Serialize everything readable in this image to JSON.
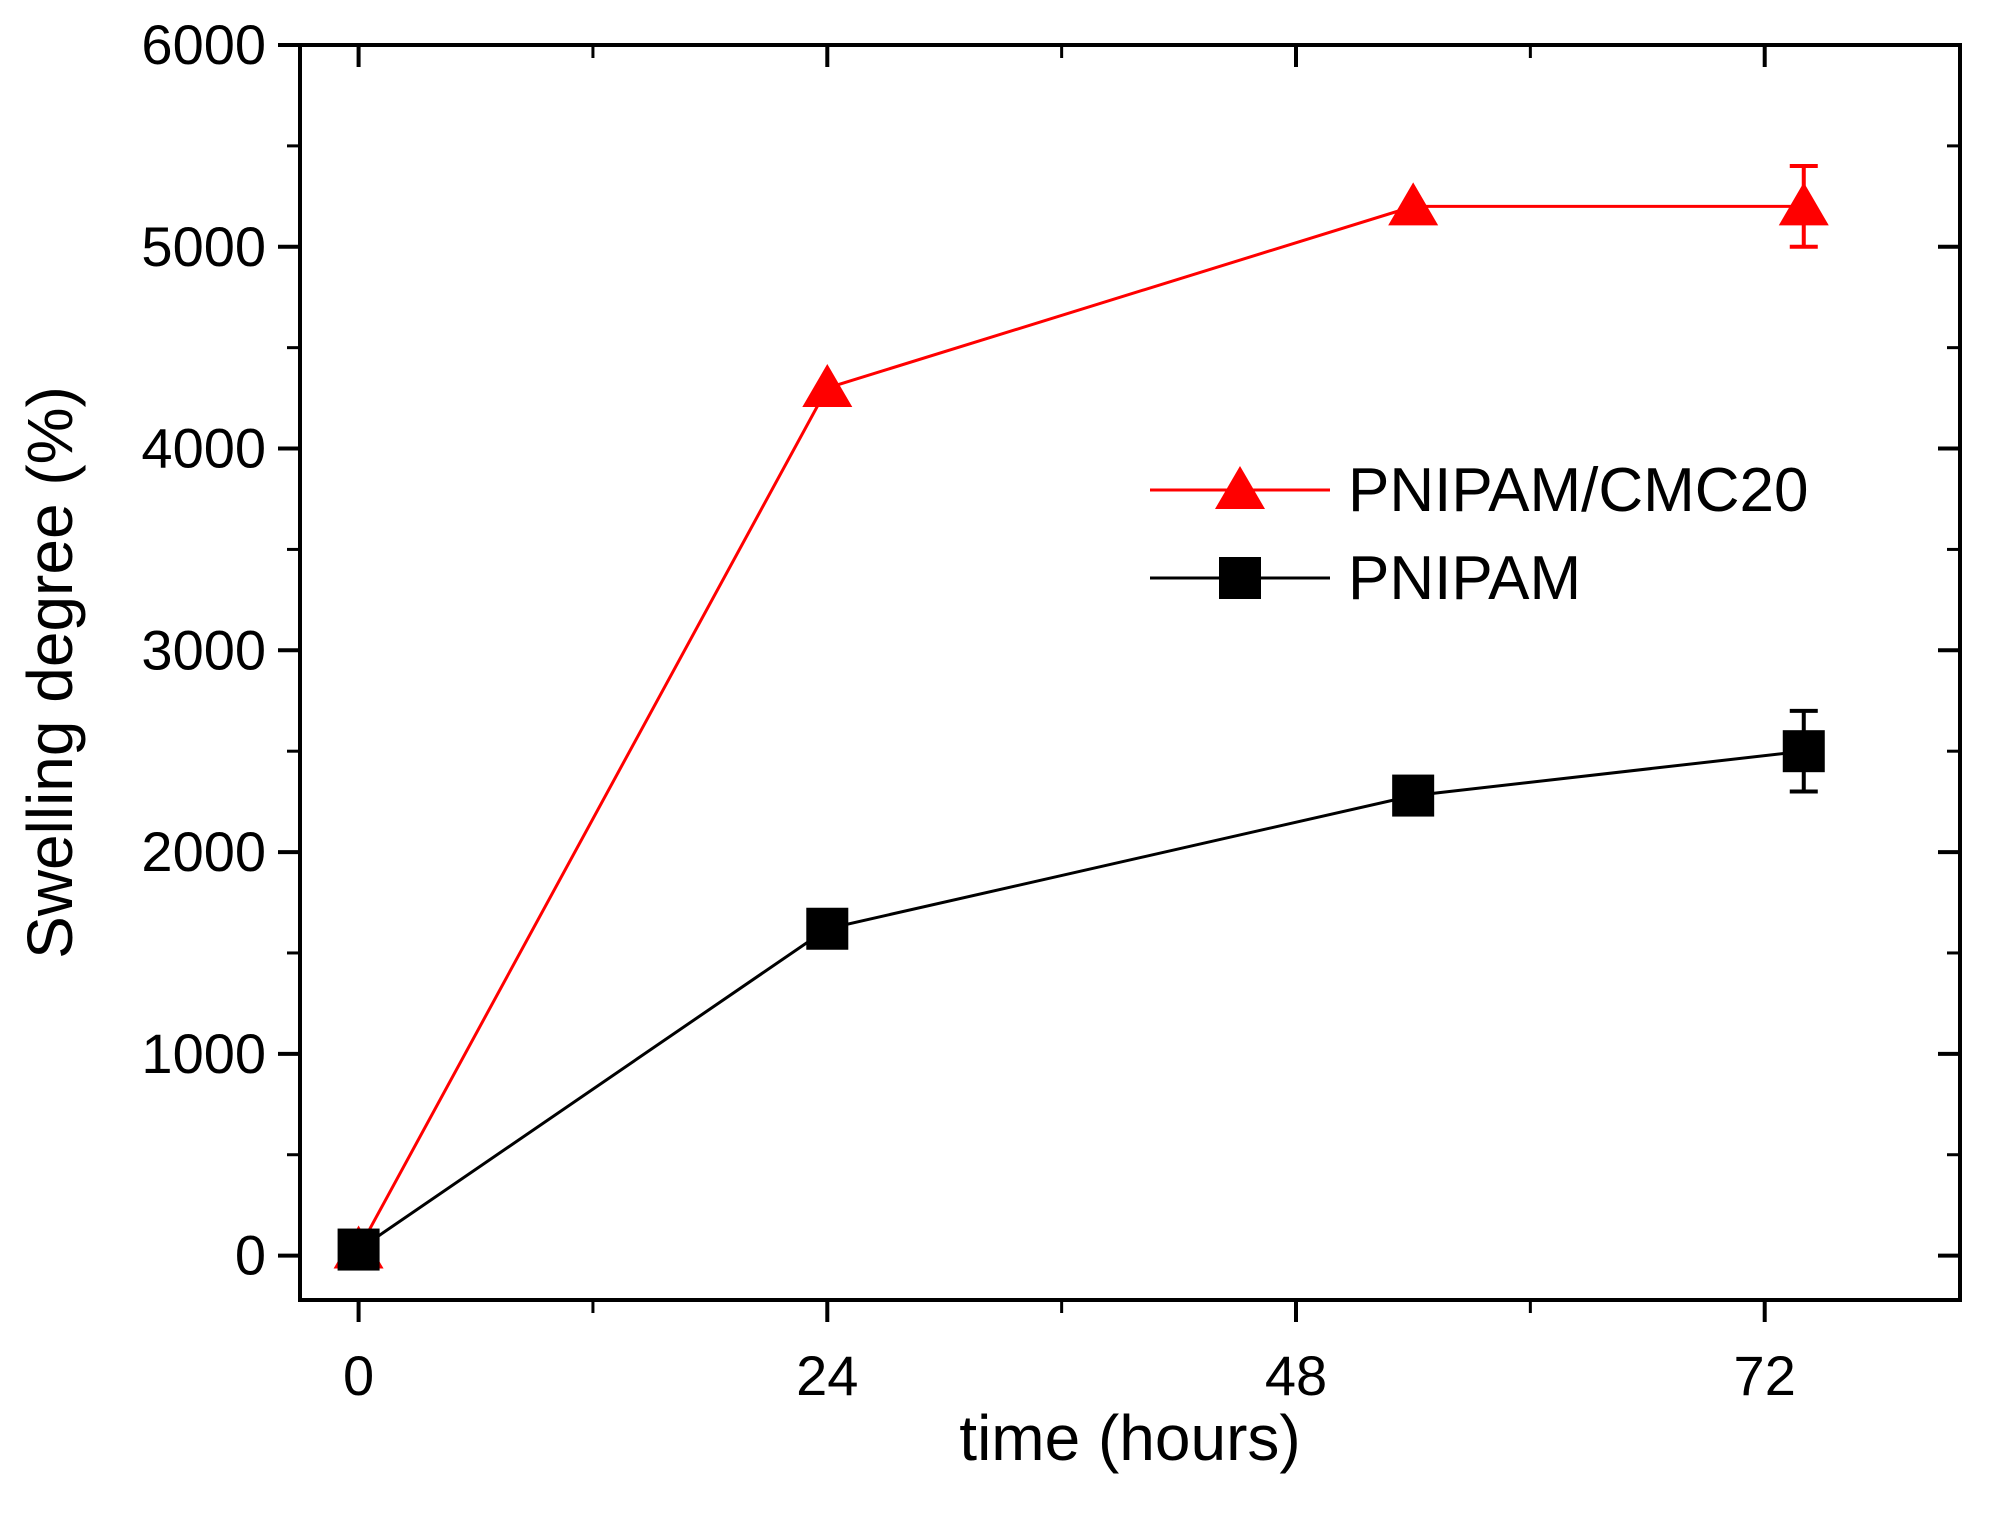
{
  "chart_data": {
    "type": "line",
    "title": "",
    "xlabel": "time (hours)",
    "ylabel": "Swelling degree (%)",
    "xlim": [
      -3,
      82
    ],
    "ylim": [
      -220,
      6000
    ],
    "x_major_ticks": [
      0,
      24,
      48,
      72
    ],
    "x_minor_step": 12,
    "y_major_ticks": [
      0,
      1000,
      2000,
      3000,
      4000,
      5000,
      6000
    ],
    "y_minor_step": 500,
    "grid": false,
    "legend_position": "upper-middle-right",
    "frame_color": "#000000",
    "background_color": "#ffffff",
    "series": [
      {
        "name": "PNIPAM/CMC20",
        "color": "#ff0000",
        "marker": "triangle",
        "x": [
          0,
          24,
          54,
          74
        ],
        "y": [
          30,
          4300,
          5200,
          5200
        ],
        "yerr": [
          40,
          0,
          0,
          200
        ]
      },
      {
        "name": "PNIPAM",
        "color": "#000000",
        "marker": "square",
        "x": [
          0,
          24,
          54,
          74
        ],
        "y": [
          30,
          1620,
          2280,
          2500
        ],
        "yerr": [
          60,
          0,
          0,
          200
        ]
      }
    ]
  }
}
